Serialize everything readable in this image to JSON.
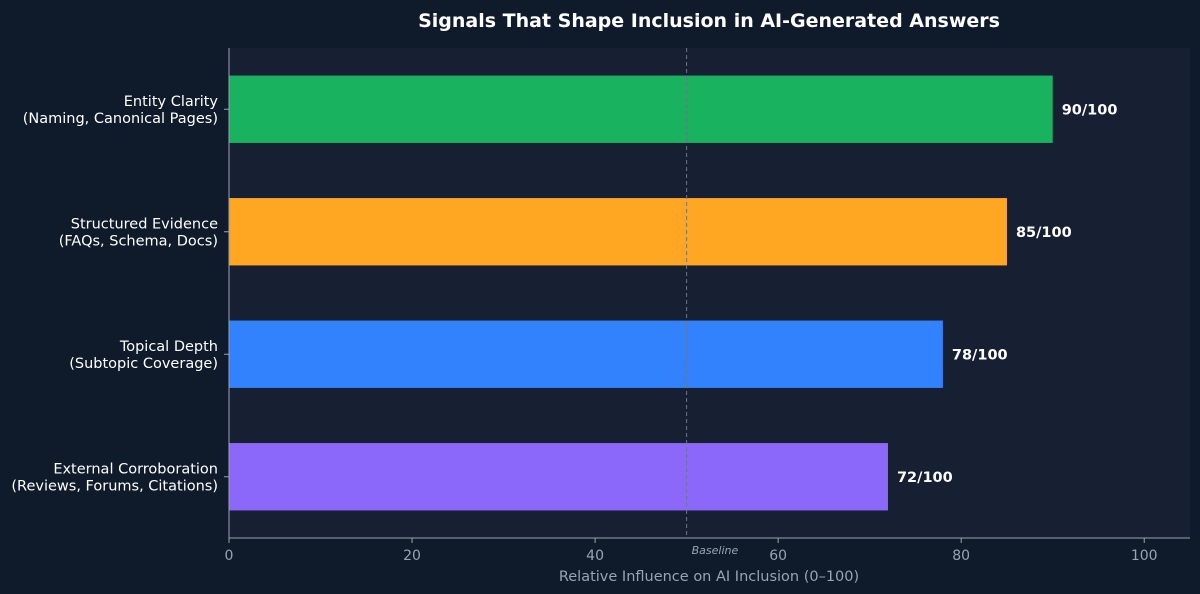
{
  "chart_data": {
    "type": "bar",
    "orientation": "horizontal",
    "title": "Signals That Shape Inclusion in AI-Generated Answers",
    "xlabel": "Relative Influence on AI Inclusion (0–100)",
    "ylabel": "",
    "xlim": [
      0,
      105
    ],
    "xticks": [
      0,
      20,
      40,
      60,
      80,
      100
    ],
    "grid": false,
    "categories": [
      [
        "Entity Clarity",
        "(Naming, Canonical Pages)"
      ],
      [
        "Structured Evidence",
        "(FAQs, Schema, Docs)"
      ],
      [
        "Topical Depth",
        "(Subtopic Coverage)"
      ],
      [
        "External Corroboration",
        "(Reviews, Forums, Citations)"
      ]
    ],
    "values": [
      90,
      85,
      78,
      72
    ],
    "value_labels": [
      "90/100",
      "85/100",
      "78/100",
      "72/100"
    ],
    "bar_colors": [
      "#19b25e",
      "#ffa623",
      "#3182fc",
      "#8b68fa"
    ],
    "reference_line": {
      "value": 50,
      "label": "Baseline",
      "style": "dashed"
    }
  },
  "colors": {
    "page_background": "#0f1a2b",
    "plot_background": "#172033",
    "axis": "#9aa3b2",
    "text": "#ffffff"
  }
}
